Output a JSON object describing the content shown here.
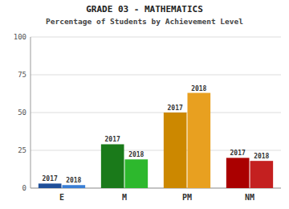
{
  "chart_data": {
    "type": "bar",
    "title": "GRADE 03 - MATHEMATICS",
    "subtitle": "Percentage of Students by Achievement Level",
    "categories": [
      "E",
      "M",
      "PM",
      "NM"
    ],
    "series": [
      {
        "name": "2017",
        "colors": [
          "#1f4f99",
          "#1a7a1a",
          "#cc8800",
          "#aa0000"
        ],
        "values": [
          3,
          29,
          50,
          20
        ]
      },
      {
        "name": "2018",
        "colors": [
          "#3a7fd5",
          "#2db82d",
          "#e8a020",
          "#c42020"
        ],
        "values": [
          2,
          19,
          63,
          18
        ]
      }
    ],
    "ylim": [
      0,
      100
    ],
    "yticks": [
      0,
      25,
      50,
      75,
      100
    ],
    "grid": true
  }
}
